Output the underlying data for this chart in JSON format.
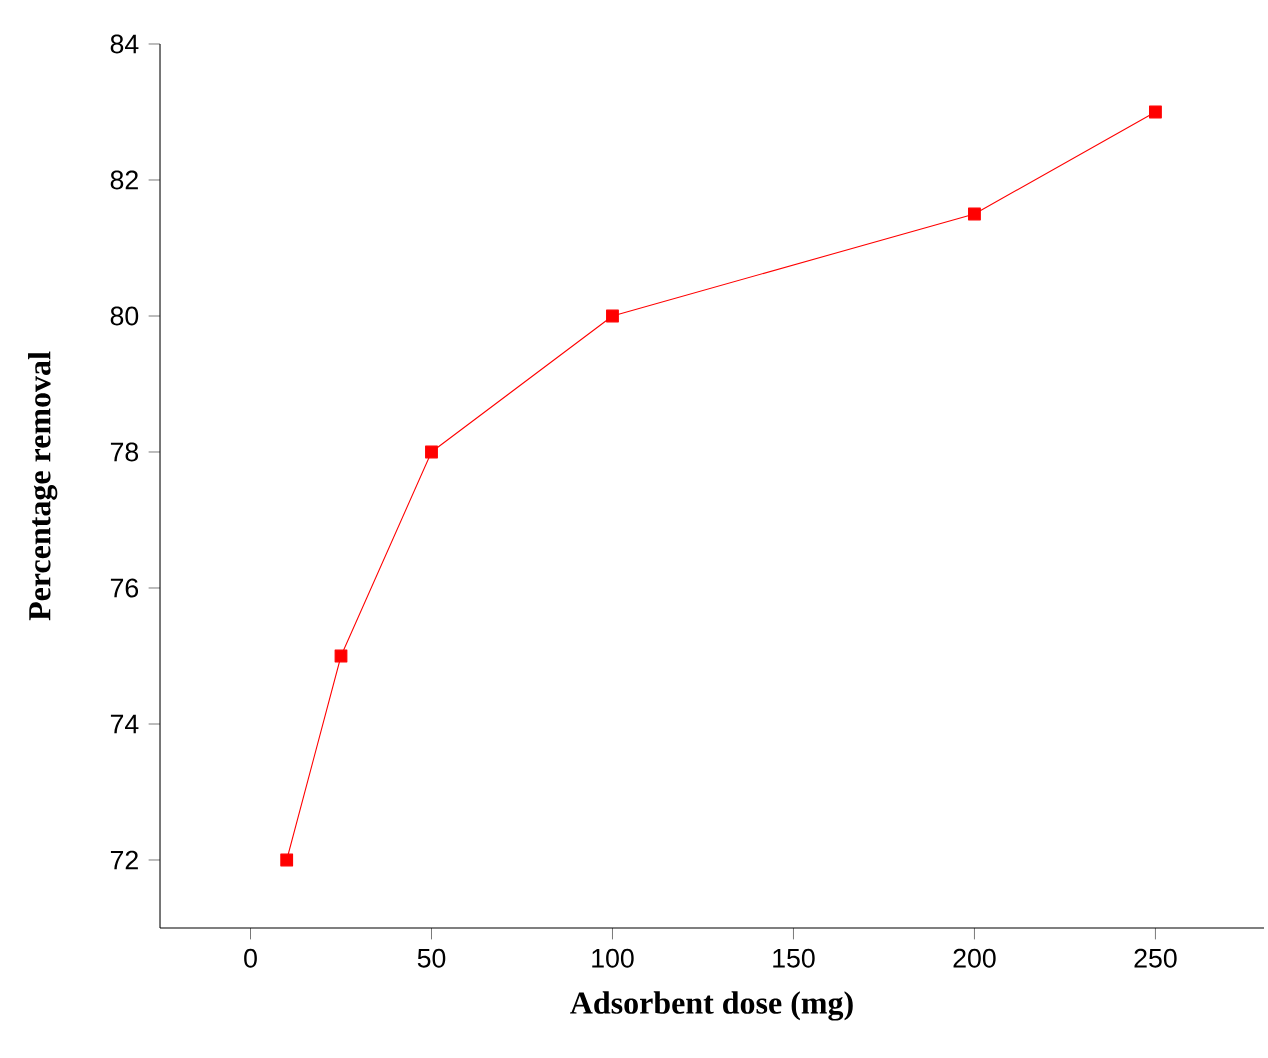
{
  "chart_data": {
    "type": "line",
    "xlabel": "Adsorbent dose (mg)",
    "ylabel": "Percentage removal",
    "x": [
      10,
      25,
      50,
      100,
      200,
      250
    ],
    "series": [
      {
        "color": "#ff0000",
        "values": [
          72,
          75,
          78,
          80,
          81.5,
          83
        ]
      }
    ],
    "xlim": [
      -25,
      280
    ],
    "ylim": [
      71,
      84
    ],
    "xticks": [
      0,
      50,
      100,
      150,
      200,
      250
    ],
    "yticks": [
      72,
      74,
      76,
      78,
      80,
      82,
      84
    ],
    "grid": false,
    "marker": "square",
    "line_style": "solid"
  }
}
